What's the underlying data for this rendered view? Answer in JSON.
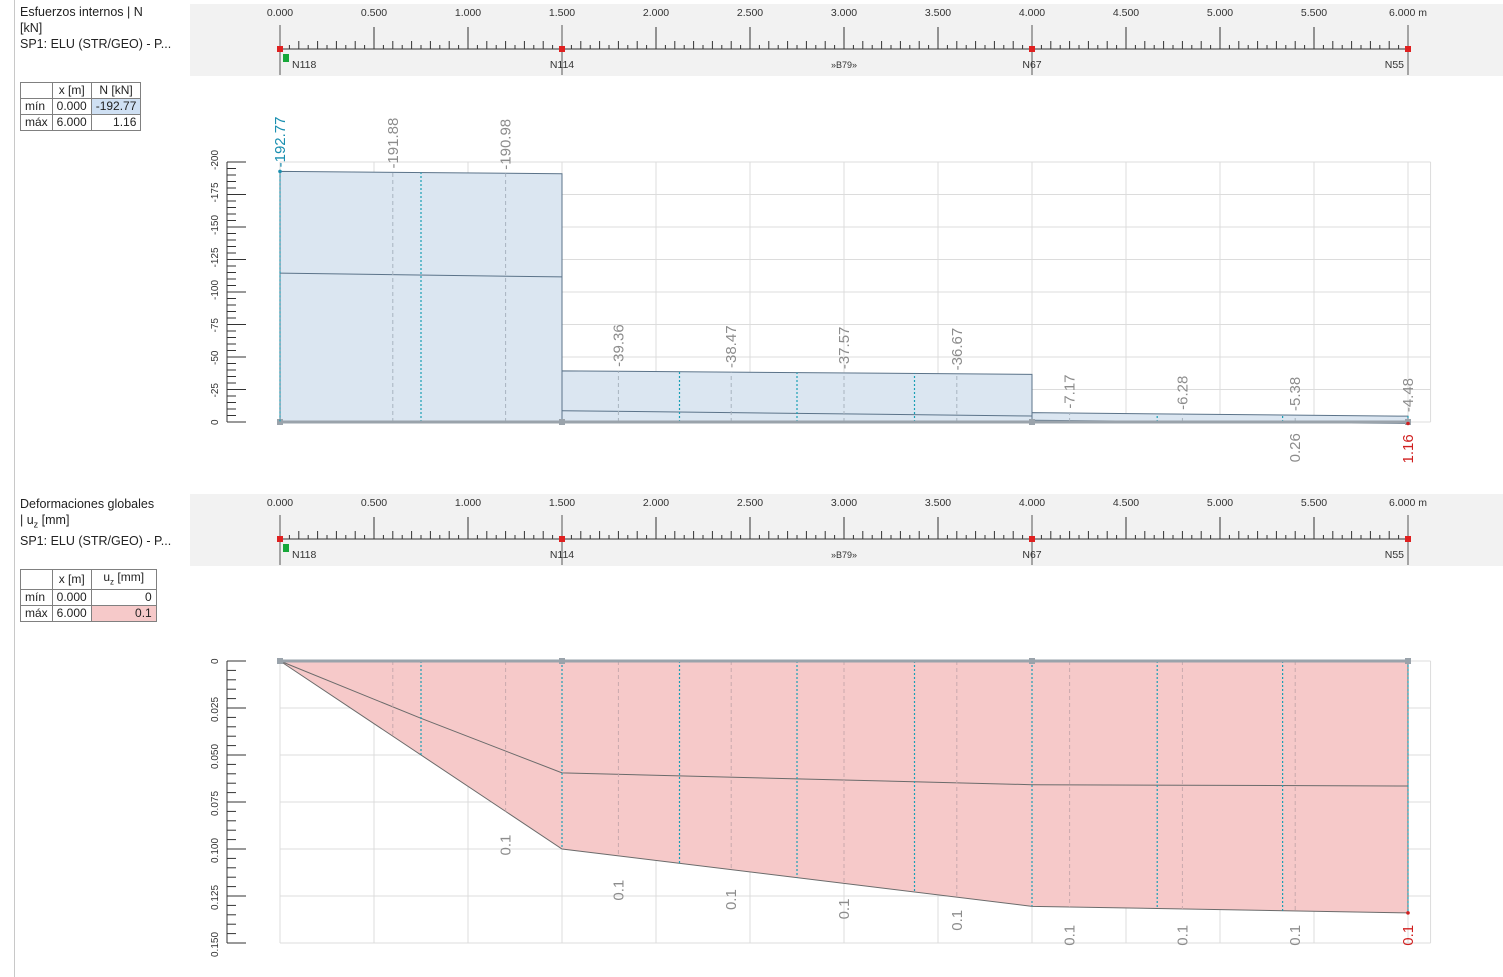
{
  "colors": {
    "n_fill": "#dbe6f1",
    "n_line": "#5b7389",
    "u_fill": "#f6c9c9",
    "u_line": "#6b6b6b",
    "grid": "#dcdcdc",
    "label_gray": "#8c8c8c",
    "label_min_n": "#1a8fb0",
    "label_max": "#d01f1f",
    "node_red": "#e02020",
    "node_green": "#18a83a",
    "section_teal": "#1a9fb5"
  },
  "ruler": {
    "ticks": [
      "0.000",
      "0.500",
      "1.000",
      "1.500",
      "2.000",
      "2.500",
      "3.000",
      "3.500",
      "4.000",
      "4.500",
      "5.000",
      "5.500",
      "6.000 m"
    ],
    "nodes": [
      {
        "x": 0.0,
        "label": "N118"
      },
      {
        "x": 1.5,
        "label": "N114"
      },
      {
        "x": 4.0,
        "label": "N67"
      },
      {
        "x": 6.0,
        "label": "N55"
      }
    ],
    "member_label": "»B79»",
    "member_label_x": 3.0
  },
  "panel_n": {
    "title_lines": [
      "Esfuerzos internos | N",
      "[kN]",
      "SP1: ELU (STR/GEO) - P..."
    ],
    "table": {
      "headers": [
        "x [m]",
        "N [kN]"
      ],
      "rows": [
        {
          "label": "mín",
          "x": "0.000",
          "value": "-192.77"
        },
        {
          "label": "máx",
          "x": "6.000",
          "value": "1.16"
        }
      ]
    }
  },
  "panel_u": {
    "title_lines": [
      "Deformaciones globales",
      "| u",
      "z",
      " [mm]",
      "SP1: ELU (STR/GEO) - P..."
    ],
    "table": {
      "headers": [
        "x [m]",
        "u",
        "z",
        " [mm]"
      ],
      "rows": [
        {
          "label": "mín",
          "x": "0.000",
          "value": "0"
        },
        {
          "label": "máx",
          "x": "6.000",
          "value": "0.1"
        }
      ]
    }
  },
  "chart_data": [
    {
      "type": "area",
      "quantity": "N [kN]",
      "ylim": [
        0,
        -200
      ],
      "yticks": [
        0,
        -25,
        -50,
        -75,
        -100,
        -125,
        -150,
        -175,
        -200
      ],
      "xlim": [
        0,
        6
      ],
      "grid": true,
      "segments": [
        {
          "x0": 0.0,
          "x1": 1.5,
          "outer": [
            -192.77,
            -190.98
          ],
          "inner": [
            -114.5,
            -111.6
          ]
        },
        {
          "x0": 1.5,
          "x1": 4.0,
          "outer": [
            -39.36,
            -36.67
          ],
          "inner": [
            -8.7,
            -4.6
          ]
        },
        {
          "x0": 4.0,
          "x1": 6.0,
          "outer": [
            -7.17,
            -4.48
          ],
          "inner": [
            -1.3,
            1.16
          ]
        }
      ],
      "section_lines_x": [
        0.75,
        2.125,
        2.75,
        3.375,
        4.666,
        5.333,
        6.0
      ],
      "dashed_lines_x": [
        0.6,
        1.2,
        1.8,
        2.4,
        3.0,
        3.6,
        4.2,
        4.8,
        5.4
      ],
      "labels": [
        {
          "x": 0.0,
          "y": -192.77,
          "text": "-192.77",
          "role": "min"
        },
        {
          "x": 0.6,
          "y": -191.88,
          "text": "-191.88"
        },
        {
          "x": 1.2,
          "y": -190.98,
          "text": "-190.98"
        },
        {
          "x": 1.8,
          "y": -39.36,
          "text": "-39.36"
        },
        {
          "x": 2.4,
          "y": -38.47,
          "text": "-38.47"
        },
        {
          "x": 3.0,
          "y": -37.57,
          "text": "-37.57"
        },
        {
          "x": 3.6,
          "y": -36.67,
          "text": "-36.67"
        },
        {
          "x": 4.2,
          "y": -7.17,
          "text": "-7.17"
        },
        {
          "x": 4.8,
          "y": -6.28,
          "text": "-6.28"
        },
        {
          "x": 5.4,
          "y": -5.38,
          "text": "-5.38"
        },
        {
          "x": 6.0,
          "y": -4.48,
          "text": "-4.48"
        },
        {
          "x": 5.4,
          "y": 0.26,
          "text": "0.26",
          "below": true
        },
        {
          "x": 6.0,
          "y": 1.16,
          "text": "1.16",
          "role": "max",
          "below": true
        }
      ]
    },
    {
      "type": "area",
      "quantity": "uz [mm]",
      "ylim": [
        0,
        0.15
      ],
      "yticks": [
        "0",
        "0.025",
        "0.050",
        "0.075",
        "0.100",
        "0.125",
        "0.150"
      ],
      "xlim": [
        0,
        6
      ],
      "grid": true,
      "outer": {
        "x": [
          0,
          1.5,
          4.0,
          6.0
        ],
        "y": [
          0,
          0.1,
          0.1305,
          0.134
        ]
      },
      "inner": {
        "x": [
          0,
          0.75,
          1.5,
          2.75,
          4.0,
          6.0
        ],
        "y": [
          0,
          0.0305,
          0.0595,
          0.0627,
          0.0658,
          0.0665
        ]
      },
      "section_lines_x": [
        0.75,
        1.5,
        2.125,
        2.75,
        3.375,
        4.0,
        4.666,
        5.333,
        6.0
      ],
      "dashed_lines_x": [
        0.6,
        1.2,
        1.8,
        2.4,
        3.0,
        3.6,
        4.2,
        4.8,
        5.4
      ],
      "labels": [
        {
          "x": 1.2,
          "text": "0.1",
          "y": 0.0875
        },
        {
          "x": 1.8,
          "text": "0.1",
          "y": 0.1115
        },
        {
          "x": 2.4,
          "text": "0.1",
          "y": 0.1165
        },
        {
          "x": 3.0,
          "text": "0.1",
          "y": 0.1215
        },
        {
          "x": 3.6,
          "text": "0.1",
          "y": 0.1275
        },
        {
          "x": 4.2,
          "text": "0.1",
          "y": 0.1355
        },
        {
          "x": 4.8,
          "text": "0.1",
          "y": 0.1355
        },
        {
          "x": 5.4,
          "text": "0.1",
          "y": 0.1355
        },
        {
          "x": 6.0,
          "text": "0.1",
          "y": 0.1355,
          "role": "max"
        }
      ]
    }
  ]
}
